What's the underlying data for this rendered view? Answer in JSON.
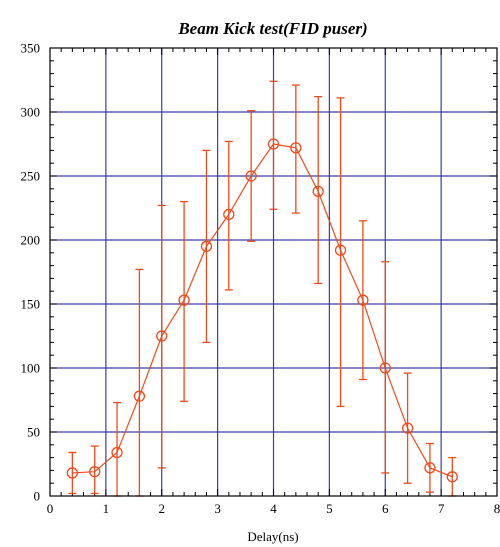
{
  "chart_data": {
    "type": "scatter",
    "title": "Beam Kick test(FID puser)",
    "xlabel": "Delay(ns)",
    "ylabel": "",
    "xlim": [
      0,
      8
    ],
    "ylim": [
      0,
      350
    ],
    "xticks": [
      0,
      1,
      2,
      3,
      4,
      5,
      6,
      7,
      8
    ],
    "yticks": [
      0,
      50,
      100,
      150,
      200,
      250,
      300,
      350
    ],
    "grid": true,
    "colors": {
      "series": "#f04a1a",
      "grid": "#3b3fa6",
      "frame": "#000000"
    },
    "series": [
      {
        "marker": "open-circle",
        "line": true,
        "x": [
          0.4,
          0.8,
          1.2,
          1.6,
          2.0,
          2.4,
          2.8,
          3.2,
          3.6,
          4.0,
          4.4,
          4.8,
          5.2,
          5.6,
          6.0,
          6.4,
          6.8,
          7.2
        ],
        "y": [
          18,
          19,
          34,
          78,
          125,
          153,
          195,
          220,
          250,
          275,
          272,
          238,
          192,
          153,
          100,
          53,
          22,
          15
        ],
        "yerr_low": [
          2,
          2,
          0,
          0,
          22,
          74,
          120,
          161,
          199,
          224,
          221,
          166,
          70,
          91,
          18,
          10,
          3,
          0
        ],
        "yerr_high": [
          34,
          39,
          73,
          177,
          227,
          230,
          270,
          277,
          301,
          324,
          321,
          312,
          311,
          215,
          183,
          96,
          41,
          30
        ]
      }
    ]
  }
}
